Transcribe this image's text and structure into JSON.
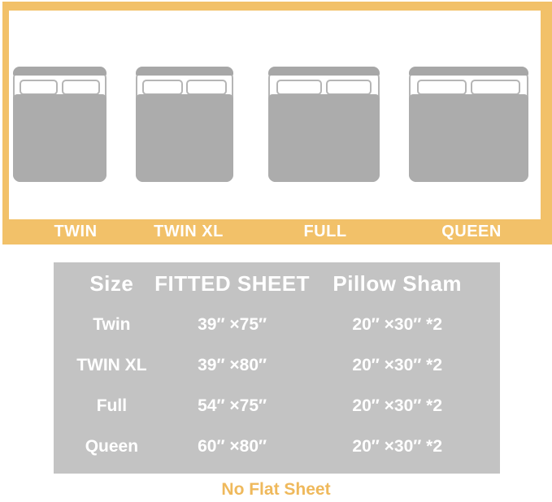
{
  "colors": {
    "accent": "#F2C169",
    "table_bg": "#C3C3C3",
    "bed_fill": "#ACACAC",
    "headboard_fill": "#A7A7A7",
    "bed_outline": "#B5B5B5",
    "white_text": "#FFFFFF",
    "footnote_text": "#EFB95C"
  },
  "bed_panel": {
    "beds": [
      {
        "label": "TWIN"
      },
      {
        "label": "TWIN XL"
      },
      {
        "label": "FULL"
      },
      {
        "label": "QUEEN"
      }
    ]
  },
  "chart_data": {
    "type": "table",
    "columns": [
      "Size",
      "FITTED SHEET",
      "Pillow Sham"
    ],
    "rows": [
      [
        "Twin",
        "39″ ×75″",
        "20″ ×30″ *2"
      ],
      [
        "TWIN XL",
        "39″ ×80″",
        "20″ ×30″ *2"
      ],
      [
        "Full",
        "54″ ×75″",
        "20″ ×30″ *2"
      ],
      [
        "Queen",
        "60″ ×80″",
        "20″ ×30″ *2"
      ]
    ]
  },
  "footnote": "No Flat Sheet"
}
